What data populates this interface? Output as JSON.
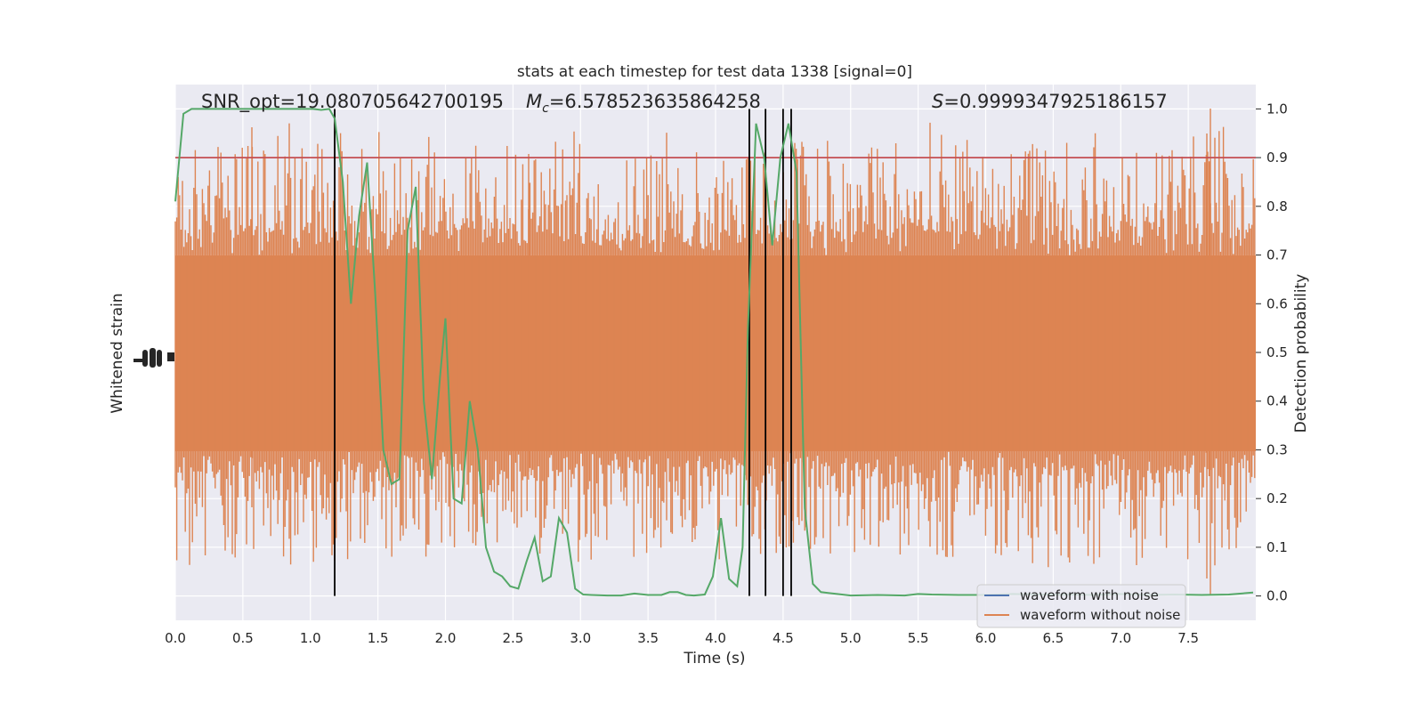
{
  "chart_data": {
    "type": "line",
    "title": "stats at each timestep for test data 1338 [signal=0]",
    "xlabel": "Time (s)",
    "ylabel_left": "Whitened strain",
    "ylabel_right": "Detection probability",
    "xlim": [
      0,
      8.0
    ],
    "ylim_right": [
      -0.05,
      1.05
    ],
    "xticks": [
      0.0,
      0.5,
      1.0,
      1.5,
      2.0,
      2.5,
      3.0,
      3.5,
      4.0,
      4.5,
      5.0,
      5.5,
      6.0,
      6.5,
      7.0,
      7.5
    ],
    "xtick_labels": [
      "0.0",
      "0.5",
      "1.0",
      "1.5",
      "2.0",
      "2.5",
      "3.0",
      "3.5",
      "4.0",
      "4.5",
      "5.0",
      "5.5",
      "6.0",
      "6.5",
      "7.0",
      "7.5"
    ],
    "yticks_right": [
      0.0,
      0.1,
      0.2,
      0.3,
      0.4,
      0.5,
      0.6,
      0.7,
      0.8,
      0.9,
      1.0
    ],
    "ytick_labels_right": [
      "0.0",
      "0.1",
      "0.2",
      "0.3",
      "0.4",
      "0.5",
      "0.6",
      "0.7",
      "0.8",
      "0.9",
      "1.0"
    ],
    "annotations": {
      "snr": "SNR_opt=19.080705642700195",
      "mc_symbol": "M",
      "mc_sub": "c",
      "mc_value": "=6.578523635864258",
      "s_symbol": "S",
      "s_value": "=0.9999347925186157"
    },
    "threshold": 0.9,
    "detection_times": [
      1.18,
      4.25,
      4.37,
      4.5,
      4.56
    ],
    "series": [
      {
        "name": "waveform with noise",
        "color": "#4c72b0"
      },
      {
        "name": "waveform without noise",
        "color": "#dd8452"
      }
    ],
    "detection_probability": {
      "color": "#55a868",
      "x": [
        0.0,
        0.06,
        0.12,
        0.18,
        0.24,
        0.3,
        0.36,
        0.42,
        0.48,
        0.54,
        0.6,
        0.66,
        0.72,
        0.78,
        0.84,
        0.9,
        0.96,
        1.02,
        1.08,
        1.14,
        1.18,
        1.24,
        1.3,
        1.36,
        1.42,
        1.48,
        1.54,
        1.6,
        1.66,
        1.72,
        1.78,
        1.84,
        1.9,
        1.96,
        2.0,
        2.06,
        2.12,
        2.18,
        2.24,
        2.3,
        2.36,
        2.42,
        2.48,
        2.54,
        2.6,
        2.66,
        2.72,
        2.78,
        2.84,
        2.9,
        2.96,
        3.02,
        3.08,
        3.2,
        3.3,
        3.4,
        3.5,
        3.6,
        3.66,
        3.72,
        3.78,
        3.84,
        3.92,
        3.98,
        4.04,
        4.1,
        4.16,
        4.2,
        4.24,
        4.3,
        4.36,
        4.42,
        4.48,
        4.54,
        4.6,
        4.66,
        4.72,
        4.78,
        4.84,
        4.9,
        5.0,
        5.2,
        5.4,
        5.5,
        5.6,
        5.8,
        6.0,
        6.2,
        6.4,
        6.6,
        6.8,
        7.0,
        7.2,
        7.4,
        7.6,
        7.8,
        7.98
      ],
      "y": [
        0.81,
        0.99,
        1.0,
        1.0,
        1.0,
        1.0,
        1.0,
        1.0,
        1.0,
        1.0,
        1.0,
        1.0,
        1.0,
        1.0,
        1.0,
        1.0,
        1.0,
        1.0,
        0.998,
        1.0,
        0.98,
        0.85,
        0.6,
        0.78,
        0.89,
        0.62,
        0.3,
        0.23,
        0.24,
        0.75,
        0.84,
        0.4,
        0.24,
        0.45,
        0.57,
        0.2,
        0.19,
        0.4,
        0.3,
        0.1,
        0.05,
        0.04,
        0.02,
        0.015,
        0.07,
        0.12,
        0.03,
        0.04,
        0.16,
        0.13,
        0.015,
        0.003,
        0.002,
        0.001,
        0.001,
        0.005,
        0.002,
        0.002,
        0.008,
        0.008,
        0.002,
        0.001,
        0.003,
        0.04,
        0.16,
        0.035,
        0.02,
        0.1,
        0.55,
        0.97,
        0.9,
        0.72,
        0.9,
        0.97,
        0.87,
        0.18,
        0.025,
        0.008,
        0.006,
        0.004,
        0.001,
        0.002,
        0.001,
        0.004,
        0.003,
        0.002,
        0.002,
        0.004,
        0.003,
        0.003,
        0.002,
        0.004,
        0.002,
        0.003,
        0.002,
        0.003,
        0.007
      ]
    }
  }
}
